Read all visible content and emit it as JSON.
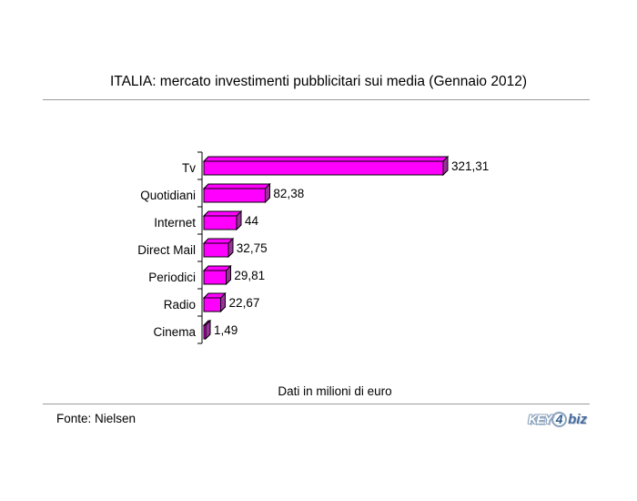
{
  "page": {
    "title": "ITALIA: mercato investimenti pubblicitari sui media (Gennaio 2012)",
    "caption": "Dati in milioni di euro",
    "footer_source": "Fonte: Nielsen",
    "logo": {
      "key": "KEY",
      "four": "4",
      "biz": "biz"
    }
  },
  "colors": {
    "background": "#ffffff",
    "bar_front": "#ff00ff",
    "bar_top": "#ff00ff",
    "bar_side": "#993399",
    "bar_outline": "#000000",
    "axis": "#000000",
    "rule": "#9a9a9a",
    "text": "#000000",
    "logo_light_blue": "#8aa2bc",
    "logo_dark_blue": "#34608e"
  },
  "chart_data": {
    "type": "bar",
    "style": "3d-horizontal-bar",
    "orientation": "horizontal",
    "title": "ITALIA: mercato investimenti pubblicitari sui media (Gennaio 2012)",
    "categories": [
      "Tv",
      "Quotidiani",
      "Internet",
      "Direct Mail",
      "Periodici",
      "Radio",
      "Cinema"
    ],
    "values": [
      321.31,
      82.38,
      44,
      32.75,
      29.81,
      22.67,
      1.49
    ],
    "value_labels": [
      "321,31",
      "82,38",
      "44",
      "32,75",
      "29,81",
      "22,67",
      "1,49"
    ],
    "unit_note": "Dati in milioni di euro",
    "source": "Fonte: Nielsen",
    "xlabel": "",
    "ylabel": "",
    "xlim": [
      0,
      330
    ],
    "grid": false,
    "legend": false
  }
}
